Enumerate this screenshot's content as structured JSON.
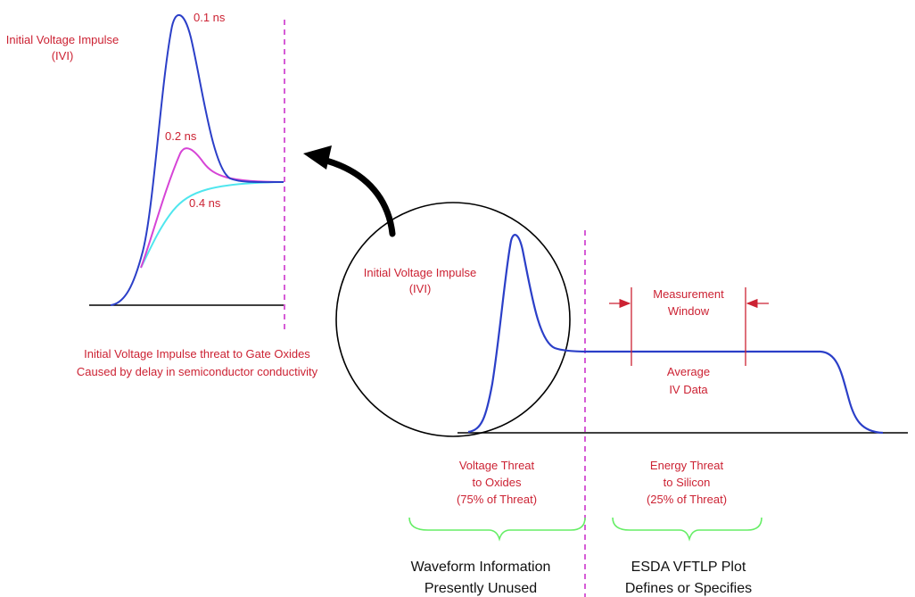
{
  "colors": {
    "annotation_text": "#cc2233",
    "footer_text": "#111111",
    "main_waveform": "#2b3fc8",
    "curve_0_2ns": "#d644d6",
    "curve_0_4ns": "#4fe6ee",
    "divider": "#cc33cc",
    "brace": "#66ee66",
    "axis": "#000000"
  },
  "zoom": {
    "title": [
      "Initial Voltage Impulse",
      "(IVI)"
    ],
    "curve_labels": [
      "0.1 ns",
      "0.2 ns",
      "0.4 ns"
    ],
    "caption": [
      "Initial Voltage Impulse threat to Gate Oxides",
      "Caused by delay in semiconductor conductivity"
    ]
  },
  "main": {
    "ivi_label": [
      "Initial Voltage Impulse",
      "(IVI)"
    ],
    "measurement_window": [
      "Measurement",
      "Window"
    ],
    "average_iv": [
      "Average",
      "IV Data"
    ]
  },
  "threats": {
    "voltage": [
      "Voltage Threat",
      "to Oxides",
      "(75% of Threat)"
    ],
    "energy": [
      "Energy Threat",
      "to Silicon",
      "(25% of Threat)"
    ]
  },
  "footer": {
    "left": [
      "Waveform Information",
      "Presently Unused"
    ],
    "right": [
      "ESDA VFTLP Plot",
      "Defines or Specifies"
    ]
  }
}
